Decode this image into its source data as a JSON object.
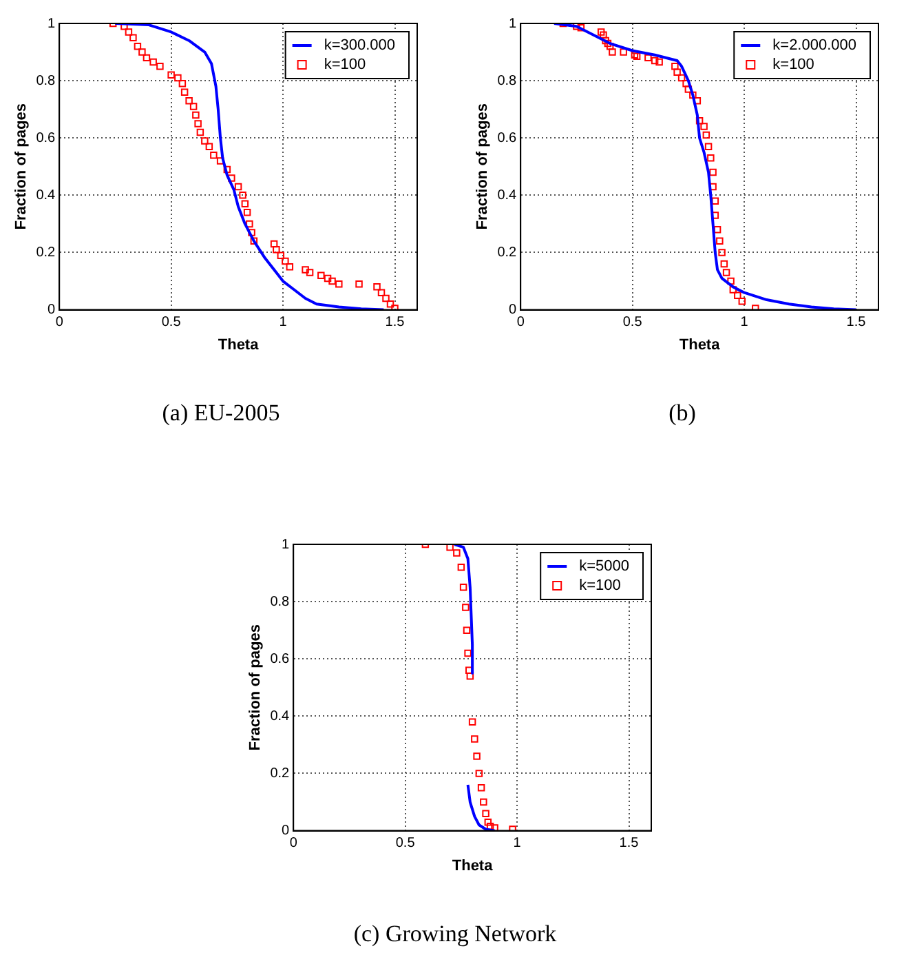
{
  "chart_data": [
    {
      "type": "line",
      "title": "(a) EU-2005",
      "xlabel": "Theta",
      "ylabel": "Fraction of pages",
      "xlim": [
        0,
        1.6
      ],
      "xticks": [
        0,
        0.5,
        1,
        1.5
      ],
      "ylim": [
        0,
        1
      ],
      "yticks": [
        0,
        0.2,
        0.4,
        0.6,
        0.8,
        1
      ],
      "grid": true,
      "legend": "top right",
      "series": [
        {
          "name": "k=300.000",
          "type": "line",
          "marker": "none",
          "color": "#0000ff",
          "x": [
            0.25,
            0.4,
            0.5,
            0.58,
            0.65,
            0.68,
            0.7,
            0.71,
            0.72,
            0.73,
            0.75,
            0.78,
            0.8,
            0.83,
            0.87,
            0.92,
            0.97,
            1.0,
            1.05,
            1.1,
            1.15,
            1.25,
            1.35,
            1.45
          ],
          "values": [
            1,
            0.995,
            0.97,
            0.94,
            0.9,
            0.86,
            0.78,
            0.7,
            0.6,
            0.53,
            0.47,
            0.42,
            0.36,
            0.3,
            0.24,
            0.18,
            0.13,
            0.1,
            0.07,
            0.04,
            0.02,
            0.01,
            0.003,
            0
          ]
        },
        {
          "name": "k=100",
          "type": "scatter",
          "marker": "square",
          "color": "#ff0000",
          "x": [
            0.24,
            0.29,
            0.31,
            0.33,
            0.35,
            0.37,
            0.39,
            0.42,
            0.45,
            0.5,
            0.53,
            0.55,
            0.56,
            0.58,
            0.6,
            0.61,
            0.62,
            0.63,
            0.65,
            0.67,
            0.69,
            0.72,
            0.75,
            0.77,
            0.8,
            0.82,
            0.83,
            0.84,
            0.85,
            0.86,
            0.87,
            0.96,
            0.97,
            0.99,
            1.01,
            1.03,
            1.1,
            1.12,
            1.17,
            1.2,
            1.22,
            1.25,
            1.34,
            1.42,
            1.44,
            1.46,
            1.48,
            1.5
          ],
          "values": [
            1,
            0.99,
            0.97,
            0.95,
            0.92,
            0.9,
            0.88,
            0.865,
            0.85,
            0.82,
            0.81,
            0.79,
            0.76,
            0.73,
            0.71,
            0.68,
            0.65,
            0.62,
            0.59,
            0.57,
            0.54,
            0.52,
            0.49,
            0.46,
            0.43,
            0.4,
            0.37,
            0.34,
            0.3,
            0.27,
            0.24,
            0.23,
            0.21,
            0.19,
            0.17,
            0.15,
            0.14,
            0.13,
            0.12,
            0.11,
            0.1,
            0.09,
            0.09,
            0.08,
            0.06,
            0.04,
            0.02,
            0.005
          ]
        }
      ]
    },
    {
      "type": "line",
      "title": "(b)",
      "xlabel": "Theta",
      "ylabel": "Fraction of pages",
      "xlim": [
        0,
        1.6
      ],
      "xticks": [
        0,
        0.5,
        1,
        1.5
      ],
      "ylim": [
        0,
        1
      ],
      "yticks": [
        0,
        0.2,
        0.4,
        0.6,
        0.8,
        1
      ],
      "grid": true,
      "legend": "top right",
      "series": [
        {
          "name": "k=2.000.000",
          "type": "line",
          "marker": "none",
          "color": "#0000ff",
          "x": [
            0.15,
            0.25,
            0.35,
            0.4,
            0.5,
            0.6,
            0.7,
            0.72,
            0.75,
            0.77,
            0.79,
            0.8,
            0.82,
            0.84,
            0.85,
            0.86,
            0.87,
            0.88,
            0.9,
            0.95,
            1.0,
            1.1,
            1.2,
            1.3,
            1.4,
            1.5
          ],
          "values": [
            1,
            0.99,
            0.95,
            0.93,
            0.905,
            0.89,
            0.87,
            0.85,
            0.8,
            0.75,
            0.68,
            0.6,
            0.55,
            0.48,
            0.4,
            0.3,
            0.2,
            0.14,
            0.11,
            0.08,
            0.06,
            0.035,
            0.02,
            0.01,
            0.003,
            0
          ]
        },
        {
          "name": "k=100",
          "type": "scatter",
          "marker": "square",
          "color": "#ff0000",
          "x": [
            0.19,
            0.25,
            0.27,
            0.36,
            0.37,
            0.38,
            0.39,
            0.4,
            0.41,
            0.46,
            0.51,
            0.52,
            0.57,
            0.6,
            0.62,
            0.69,
            0.7,
            0.72,
            0.74,
            0.75,
            0.77,
            0.79,
            0.8,
            0.82,
            0.83,
            0.84,
            0.85,
            0.86,
            0.86,
            0.87,
            0.87,
            0.88,
            0.89,
            0.9,
            0.91,
            0.92,
            0.94,
            0.95,
            0.97,
            0.99,
            1.05
          ],
          "values": [
            1,
            0.99,
            0.985,
            0.97,
            0.96,
            0.94,
            0.93,
            0.92,
            0.9,
            0.9,
            0.89,
            0.885,
            0.88,
            0.87,
            0.865,
            0.85,
            0.83,
            0.81,
            0.79,
            0.77,
            0.75,
            0.73,
            0.66,
            0.64,
            0.61,
            0.57,
            0.53,
            0.48,
            0.43,
            0.38,
            0.33,
            0.28,
            0.24,
            0.2,
            0.16,
            0.13,
            0.1,
            0.07,
            0.05,
            0.03,
            0.005
          ]
        }
      ]
    },
    {
      "type": "line",
      "title": "(c) Growing Network",
      "xlabel": "Theta",
      "ylabel": "Fraction of pages",
      "xlim": [
        0,
        1.6
      ],
      "xticks": [
        0,
        0.5,
        1,
        1.5
      ],
      "ylim": [
        0,
        1
      ],
      "yticks": [
        0,
        0.2,
        0.4,
        0.6,
        0.8,
        1
      ],
      "grid": true,
      "legend": "top right",
      "series": [
        {
          "name": "k=5000",
          "type": "line",
          "marker": "none",
          "color": "#0000ff",
          "x": [
            0.72,
            0.76,
            0.78,
            0.79,
            0.795,
            0.8,
            0.8,
            0.79,
            0.78,
            0.79,
            0.81,
            0.83,
            0.86,
            0.9
          ],
          "values": [
            1,
            0.99,
            0.95,
            0.85,
            0.75,
            0.65,
            0.55,
            null,
            0.16,
            0.1,
            0.05,
            0.02,
            0.005,
            0
          ]
        },
        {
          "name": "k=100",
          "type": "scatter",
          "marker": "square",
          "color": "#ff0000",
          "x": [
            0.59,
            0.7,
            0.73,
            0.75,
            0.76,
            0.77,
            0.775,
            0.78,
            0.785,
            0.79,
            0.8,
            0.81,
            0.82,
            0.83,
            0.84,
            0.85,
            0.86,
            0.87,
            0.88,
            0.9,
            0.98
          ],
          "values": [
            1,
            0.99,
            0.97,
            0.92,
            0.85,
            0.78,
            0.7,
            0.62,
            0.56,
            0.54,
            0.38,
            0.32,
            0.26,
            0.2,
            0.15,
            0.1,
            0.06,
            0.03,
            0.015,
            0.01,
            0.005
          ]
        }
      ]
    }
  ]
}
